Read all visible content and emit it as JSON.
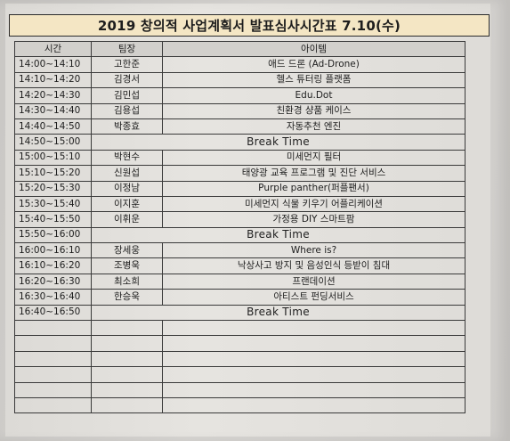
{
  "title": "2019 창의적 사업계획서 발표심사시간표 7.10(수)",
  "headers": {
    "time": "시간",
    "team": "팀장",
    "item": "아이템"
  },
  "rows": [
    {
      "time": "14:00~14:10",
      "team": "고한준",
      "item": "애드 드론 (Ad-Drone)"
    },
    {
      "time": "14:10~14:20",
      "team": "김경서",
      "item": "헬스 튜터링 플랫폼"
    },
    {
      "time": "14:20~14:30",
      "team": "김민섭",
      "item": "Edu.Dot"
    },
    {
      "time": "14:30~14:40",
      "team": "김용섭",
      "item": "친환경 샹품 케이스"
    },
    {
      "time": "14:40~14:50",
      "team": "박종효",
      "item": "자동추천 엔진"
    },
    {
      "time": "14:50~15:00",
      "break": "Break Time"
    },
    {
      "time": "15:00~15:10",
      "team": "박현수",
      "item": "미세먼지 필터"
    },
    {
      "time": "15:10~15:20",
      "team": "신원섭",
      "item": "태양광 교육 프로그램 및 진단 서비스"
    },
    {
      "time": "15:20~15:30",
      "team": "이정남",
      "item": "Purple panther(퍼플팬서)"
    },
    {
      "time": "15:30~15:40",
      "team": "이지훈",
      "item": "미세먼지 식물 키우기 어플리케이션"
    },
    {
      "time": "15:40~15:50",
      "team": "이휘운",
      "item": "가정용 DIY 스마트팜"
    },
    {
      "time": "15:50~16:00",
      "break": "Break Time"
    },
    {
      "time": "16:00~16:10",
      "team": "장세웅",
      "item": "Where is?"
    },
    {
      "time": "16:10~16:20",
      "team": "조병욱",
      "item": "낙상사고 방지 및 음성인식 등받이 침대"
    },
    {
      "time": "16:20~16:30",
      "team": "최소희",
      "item": "프랜데이션"
    },
    {
      "time": "16:30~16:40",
      "team": "한승욱",
      "item": "아티스트 펀딩서비스"
    },
    {
      "time": "16:40~16:50",
      "break": "Break Time"
    },
    {
      "time": "",
      "team": "",
      "item": ""
    },
    {
      "time": "",
      "team": "",
      "item": ""
    },
    {
      "time": "",
      "team": "",
      "item": ""
    },
    {
      "time": "",
      "team": "",
      "item": ""
    },
    {
      "time": "",
      "team": "",
      "item": ""
    },
    {
      "time": "",
      "team": "",
      "item": ""
    }
  ]
}
